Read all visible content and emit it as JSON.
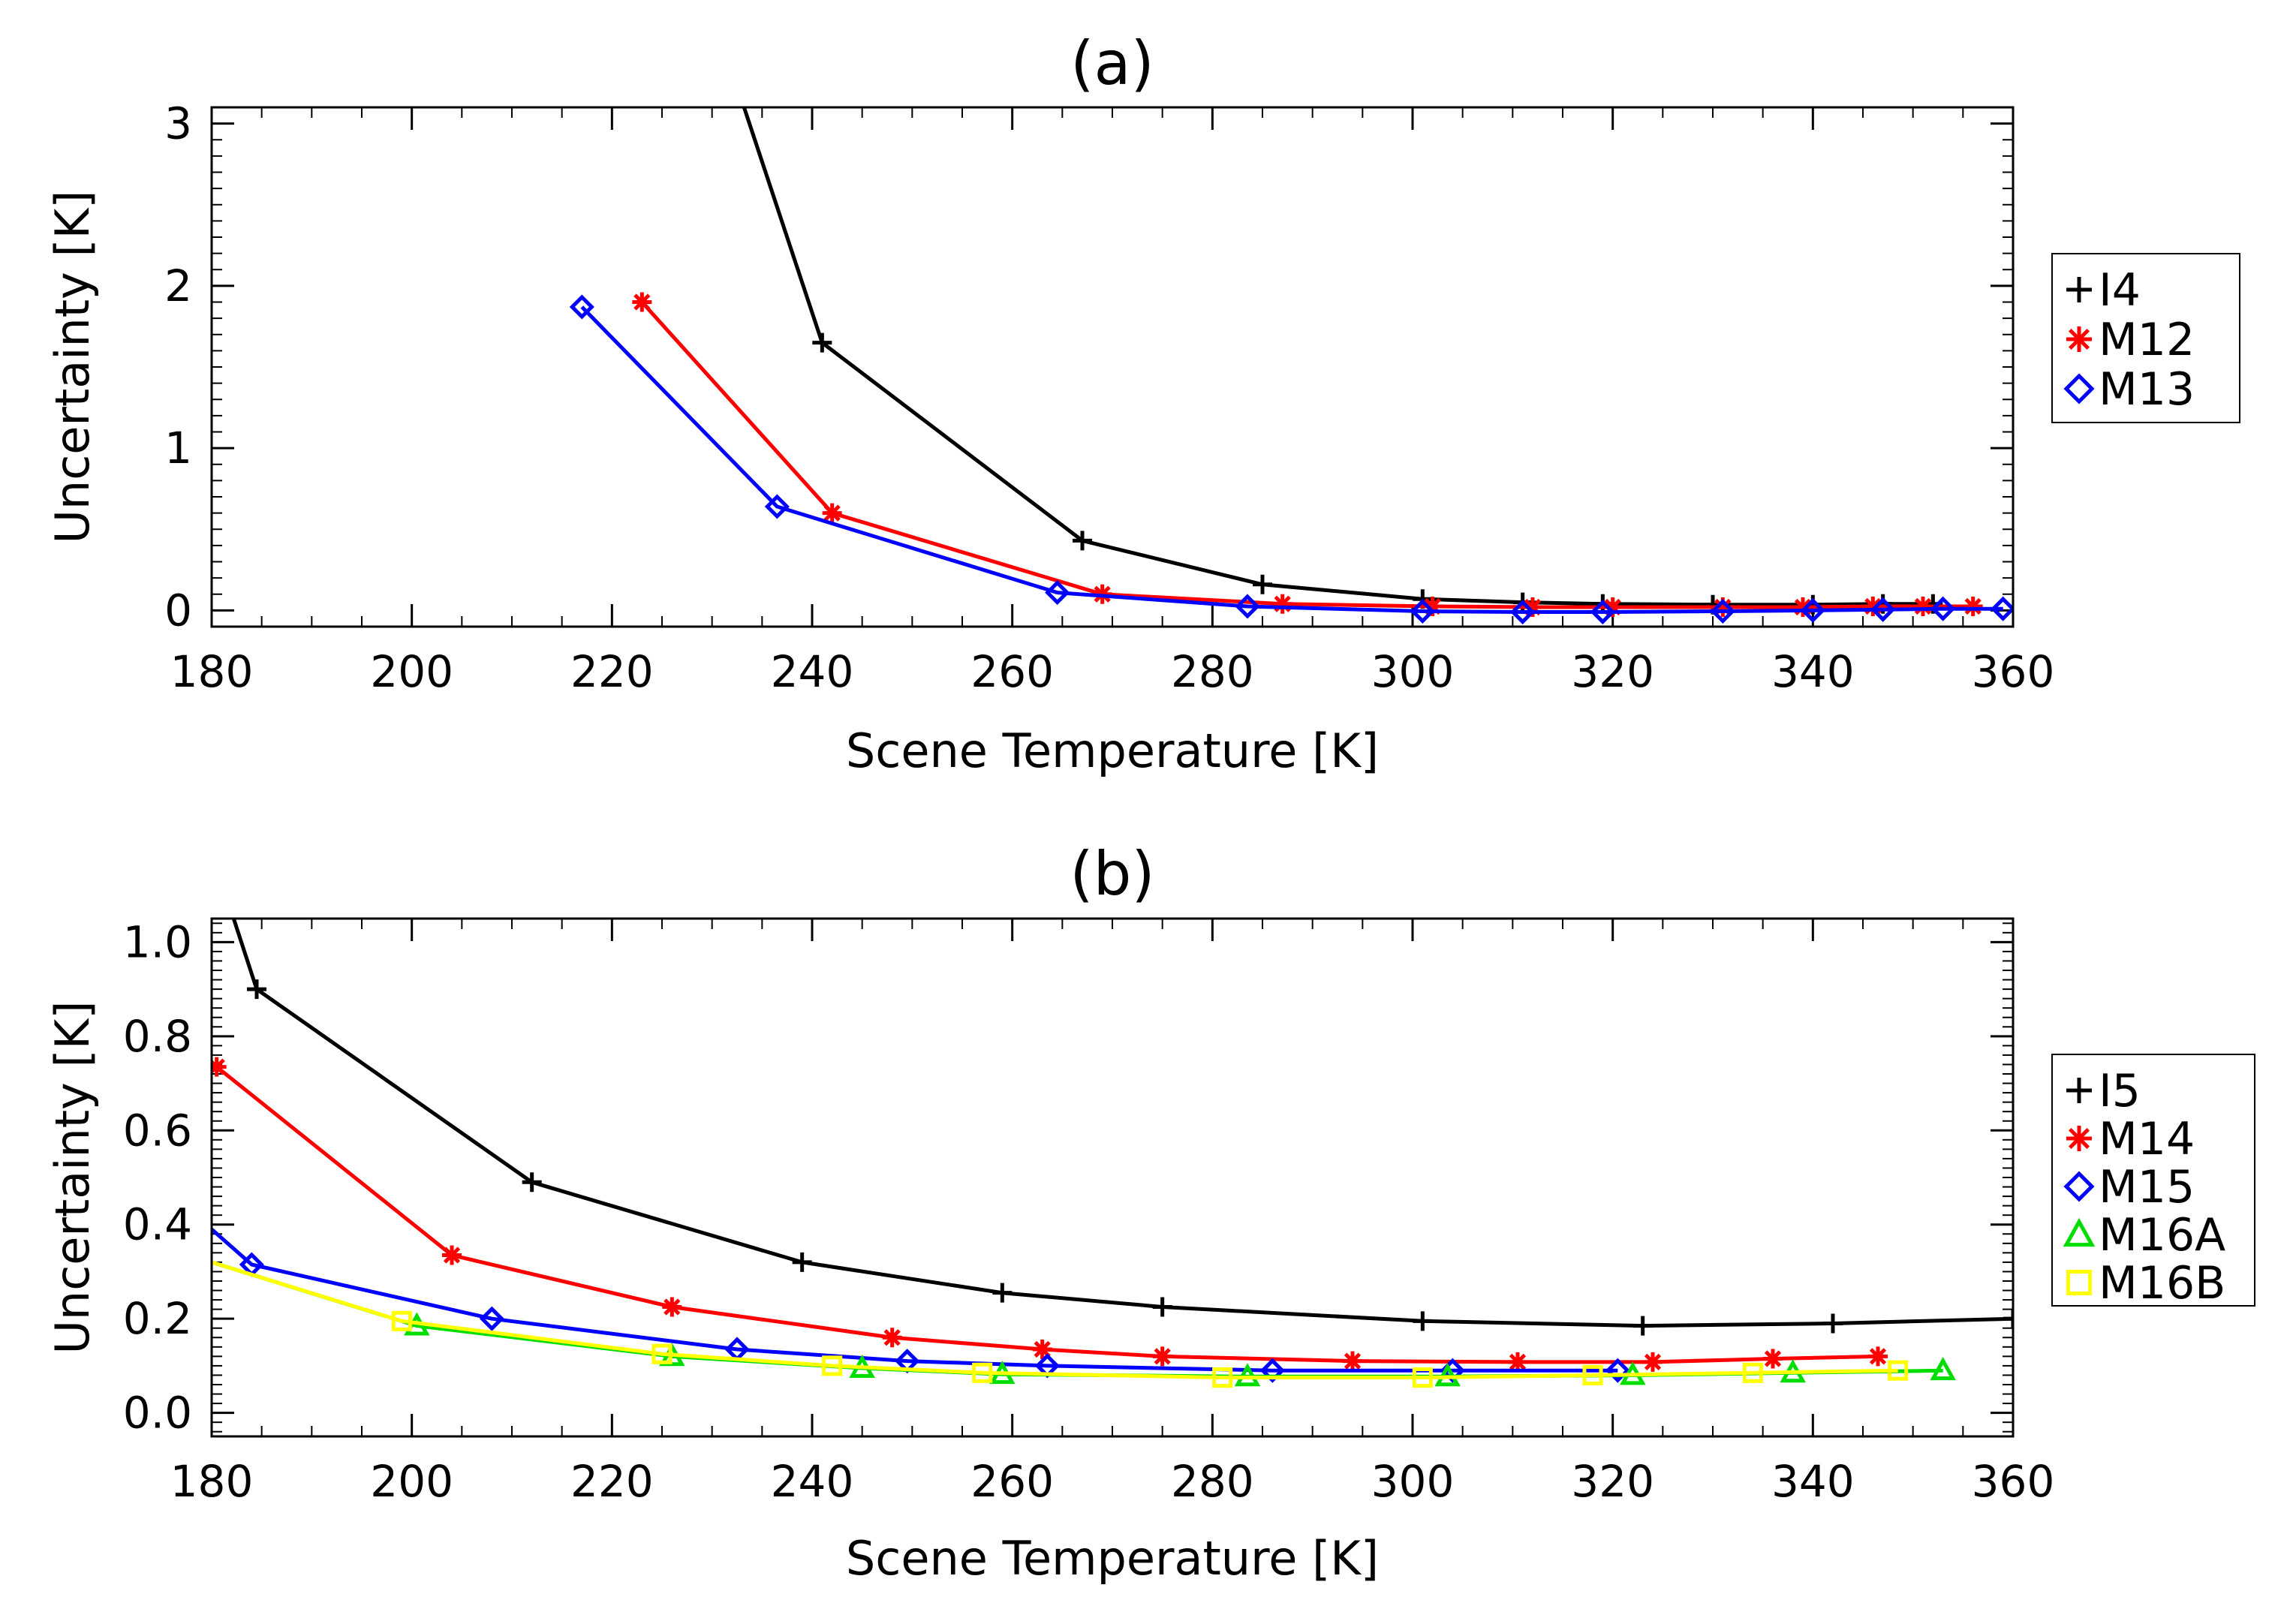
{
  "chart_data": [
    {
      "type": "line",
      "title": "(a)",
      "xlabel": "Scene Temperature [K]",
      "ylabel": "Uncertainty [K]",
      "xlim": [
        180,
        360
      ],
      "ylim": [
        -0.1,
        3.1
      ],
      "x_ticks": [
        180,
        200,
        220,
        240,
        260,
        280,
        300,
        320,
        340,
        360
      ],
      "y_ticks": [
        0,
        1,
        2,
        3
      ],
      "legend_position": "right",
      "series": [
        {
          "name": "I4",
          "color": "#000000",
          "marker": "plus",
          "x": [
            233.2,
            241,
            267,
            285,
            301,
            311,
            319,
            330,
            340,
            347,
            352
          ],
          "y": [
            3.1,
            1.65,
            0.43,
            0.16,
            0.07,
            0.05,
            0.04,
            0.035,
            0.035,
            0.04,
            0.04
          ],
          "markers": [
            false,
            true,
            true,
            true,
            true,
            true,
            true,
            true,
            true,
            true,
            true
          ]
        },
        {
          "name": "M12",
          "color": "#ff0000",
          "marker": "asterisk",
          "x": [
            223,
            242,
            269,
            287,
            302,
            312,
            320,
            331,
            339,
            346,
            351,
            356
          ],
          "y": [
            1.9,
            0.6,
            0.1,
            0.04,
            0.025,
            0.02,
            0.02,
            0.02,
            0.02,
            0.025,
            0.025,
            0.025
          ]
        },
        {
          "name": "M13",
          "color": "#0000ff",
          "marker": "diamond",
          "x": [
            217,
            236.5,
            264.5,
            283.5,
            301,
            311,
            319,
            331,
            340,
            347,
            353,
            359
          ],
          "y": [
            1.87,
            0.64,
            0.11,
            0.025,
            -0.005,
            -0.01,
            -0.01,
            -0.005,
            0.0,
            0.005,
            0.01,
            0.01
          ],
          "marker_x": [
            217,
            236.5,
            264.5,
            283.5,
            301,
            311,
            319,
            331,
            340,
            347,
            353,
            359
          ]
        }
      ]
    },
    {
      "type": "line",
      "title": "(b)",
      "xlabel": "Scene Temperature [K]",
      "ylabel": "Uncertainty [K]",
      "xlim": [
        180,
        360
      ],
      "ylim": [
        -0.05,
        1.05
      ],
      "x_ticks": [
        180,
        200,
        220,
        240,
        260,
        280,
        300,
        320,
        340,
        360
      ],
      "y_ticks": [
        "0.0",
        "0.2",
        "0.4",
        "0.6",
        "0.8",
        "1.0"
      ],
      "legend_position": "right",
      "series": [
        {
          "name": "I5",
          "color": "#000000",
          "marker": "plus",
          "x": [
            182.2,
            184.5,
            212,
            239,
            259,
            275,
            301,
            323,
            342,
            360
          ],
          "y": [
            1.05,
            0.9,
            0.49,
            0.32,
            0.255,
            0.225,
            0.195,
            0.185,
            0.19,
            0.2
          ],
          "markers": [
            false,
            true,
            true,
            true,
            true,
            true,
            true,
            true,
            true,
            true
          ]
        },
        {
          "name": "M14",
          "color": "#ff0000",
          "marker": "asterisk",
          "x": [
            180.5,
            204,
            226,
            248,
            263,
            275,
            294,
            310.5,
            324,
            336,
            346.5
          ],
          "y": [
            0.735,
            0.335,
            0.225,
            0.16,
            0.135,
            0.12,
            0.11,
            0.108,
            0.108,
            0.115,
            0.12
          ]
        },
        {
          "name": "M15",
          "color": "#0000ff",
          "marker": "diamond",
          "x": [
            180,
            184,
            208,
            232.5,
            249.5,
            263.5,
            286,
            304,
            320.5
          ],
          "y": [
            0.39,
            0.315,
            0.2,
            0.135,
            0.11,
            0.1,
            0.09,
            0.09,
            0.09
          ],
          "markers": [
            false,
            true,
            true,
            true,
            true,
            true,
            true,
            true,
            true
          ]
        },
        {
          "name": "M16A",
          "color": "#00dd00",
          "marker": "triangle",
          "x": [
            180,
            200.5,
            226,
            245,
            259,
            283.5,
            303.5,
            322,
            338,
            353
          ],
          "y": [
            0.32,
            0.185,
            0.12,
            0.095,
            0.082,
            0.077,
            0.077,
            0.08,
            0.085,
            0.09
          ],
          "markers": [
            false,
            true,
            true,
            true,
            true,
            true,
            true,
            true,
            true,
            true
          ]
        },
        {
          "name": "M16B",
          "color": "#ffff00",
          "marker": "square",
          "x": [
            180,
            199,
            225,
            242,
            257,
            281,
            301,
            318,
            334,
            348.5
          ],
          "y": [
            0.32,
            0.195,
            0.125,
            0.1,
            0.085,
            0.075,
            0.075,
            0.08,
            0.085,
            0.09
          ],
          "markers": [
            false,
            true,
            true,
            true,
            true,
            true,
            true,
            true,
            true,
            true
          ]
        }
      ]
    }
  ]
}
